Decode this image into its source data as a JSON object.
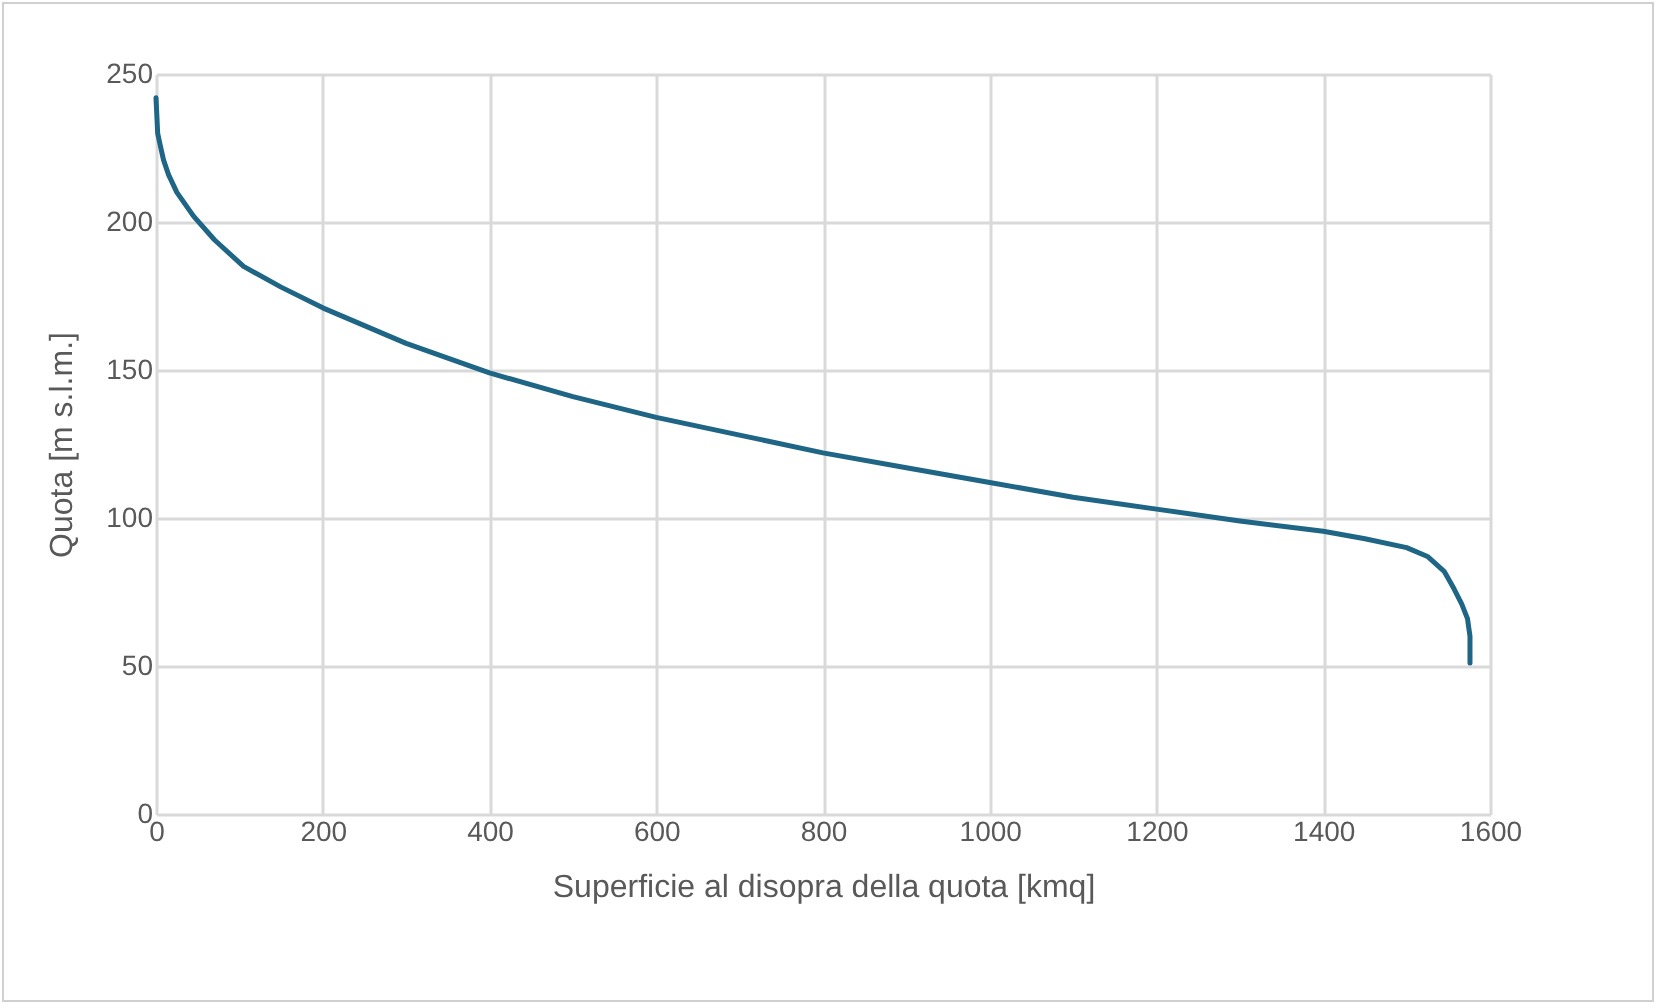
{
  "chart_data": {
    "type": "line",
    "xlabel": "Superficie al disopra della quota [kmq]",
    "ylabel": "Quota [m s.l.m.]",
    "x": [
      0,
      2,
      5,
      9,
      15,
      25,
      45,
      70,
      105,
      150,
      200,
      300,
      400,
      500,
      600,
      700,
      800,
      900,
      1000,
      1100,
      1200,
      1300,
      1400,
      1450,
      1500,
      1525,
      1545,
      1557,
      1566,
      1573,
      1576,
      1576
    ],
    "series": [
      {
        "color": "#1f6585",
        "values": [
          242,
          230,
          226,
          221,
          216,
          210,
          202,
          194,
          185,
          178,
          171,
          159,
          149,
          141,
          134,
          128,
          122,
          117,
          112,
          107,
          103,
          99,
          95.5,
          93,
          90,
          87,
          82,
          76,
          71,
          66,
          60,
          51
        ]
      }
    ],
    "xlim": [
      0,
      1600
    ],
    "xticks": [
      0,
      200,
      400,
      600,
      800,
      1000,
      1200,
      1400,
      1600
    ],
    "ylim": [
      0,
      250
    ],
    "yticks": [
      0,
      50,
      100,
      150,
      200,
      250
    ],
    "grid": true
  }
}
